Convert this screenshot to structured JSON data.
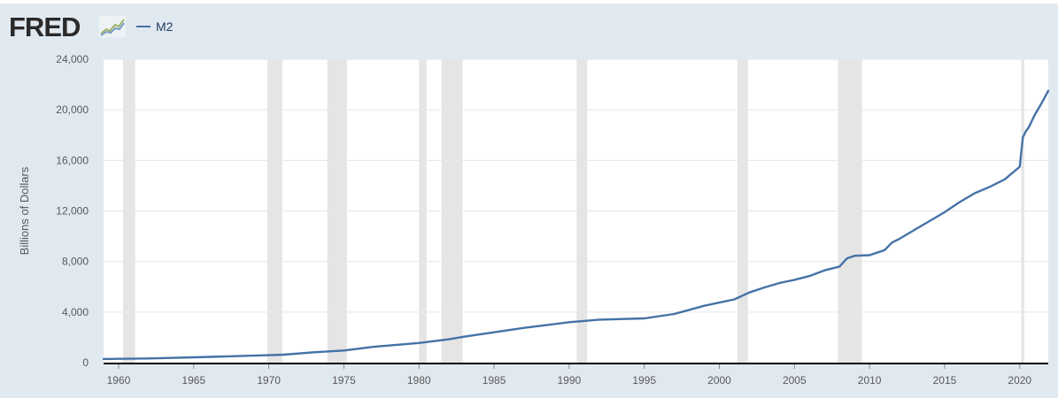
{
  "header": {
    "logo_text": "FRED",
    "legend_label": "M2",
    "series_color": "#4572a7"
  },
  "chart_data": {
    "type": "line",
    "title": "",
    "xlabel": "",
    "ylabel": "Billions of Dollars",
    "xlim": [
      1959,
      2021.9
    ],
    "ylim": [
      0,
      24000
    ],
    "y_ticks": [
      0,
      4000,
      8000,
      12000,
      16000,
      20000,
      24000
    ],
    "y_tick_labels": [
      "0",
      "4,000",
      "8,000",
      "12,000",
      "16,000",
      "20,000",
      "24,000"
    ],
    "x_ticks": [
      1960,
      1965,
      1970,
      1975,
      1980,
      1985,
      1990,
      1995,
      2000,
      2005,
      2010,
      2015,
      2020
    ],
    "x_tick_labels": [
      "1960",
      "1965",
      "1970",
      "1975",
      "1980",
      "1985",
      "1990",
      "1995",
      "2000",
      "2005",
      "2010",
      "2015",
      "2020"
    ],
    "grid": true,
    "legend": "top-left",
    "recessions": [
      [
        1960.3,
        1961.1
      ],
      [
        1969.9,
        1970.9
      ],
      [
        1973.9,
        1975.2
      ],
      [
        1980.0,
        1980.5
      ],
      [
        1981.5,
        1982.9
      ],
      [
        1990.5,
        1991.2
      ],
      [
        2001.2,
        2001.9
      ],
      [
        2007.9,
        2009.5
      ],
      [
        2020.1,
        2020.3
      ]
    ],
    "series": [
      {
        "name": "M2",
        "color": "#4572a7",
        "x": [
          1959.0,
          1960.0,
          1962.0,
          1965.0,
          1968.0,
          1970.0,
          1971.0,
          1973.0,
          1975.0,
          1977.0,
          1980.0,
          1982.0,
          1983.0,
          1985.0,
          1987.0,
          1990.0,
          1992.0,
          1995.0,
          1997.0,
          1999.0,
          2001.0,
          2002.0,
          2003.0,
          2004.0,
          2005.0,
          2006.0,
          2007.0,
          2008.0,
          2008.5,
          2009.0,
          2010.0,
          2011.0,
          2011.5,
          2012.0,
          2013.0,
          2014.0,
          2015.0,
          2016.0,
          2017.0,
          2018.0,
          2019.0,
          2020.0,
          2020.2,
          2020.4,
          2020.6,
          2021.0,
          2021.4,
          2021.9
        ],
        "values": [
          290,
          300,
          330,
          420,
          520,
          590,
          630,
          820,
          960,
          1250,
          1550,
          1850,
          2050,
          2400,
          2750,
          3200,
          3400,
          3500,
          3850,
          4500,
          5000,
          5550,
          5950,
          6300,
          6550,
          6850,
          7300,
          7600,
          8250,
          8450,
          8500,
          8900,
          9500,
          9800,
          10500,
          11200,
          11900,
          12700,
          13400,
          13900,
          14500,
          15500,
          17800,
          18300,
          18600,
          19600,
          20400,
          21500
        ]
      }
    ]
  }
}
